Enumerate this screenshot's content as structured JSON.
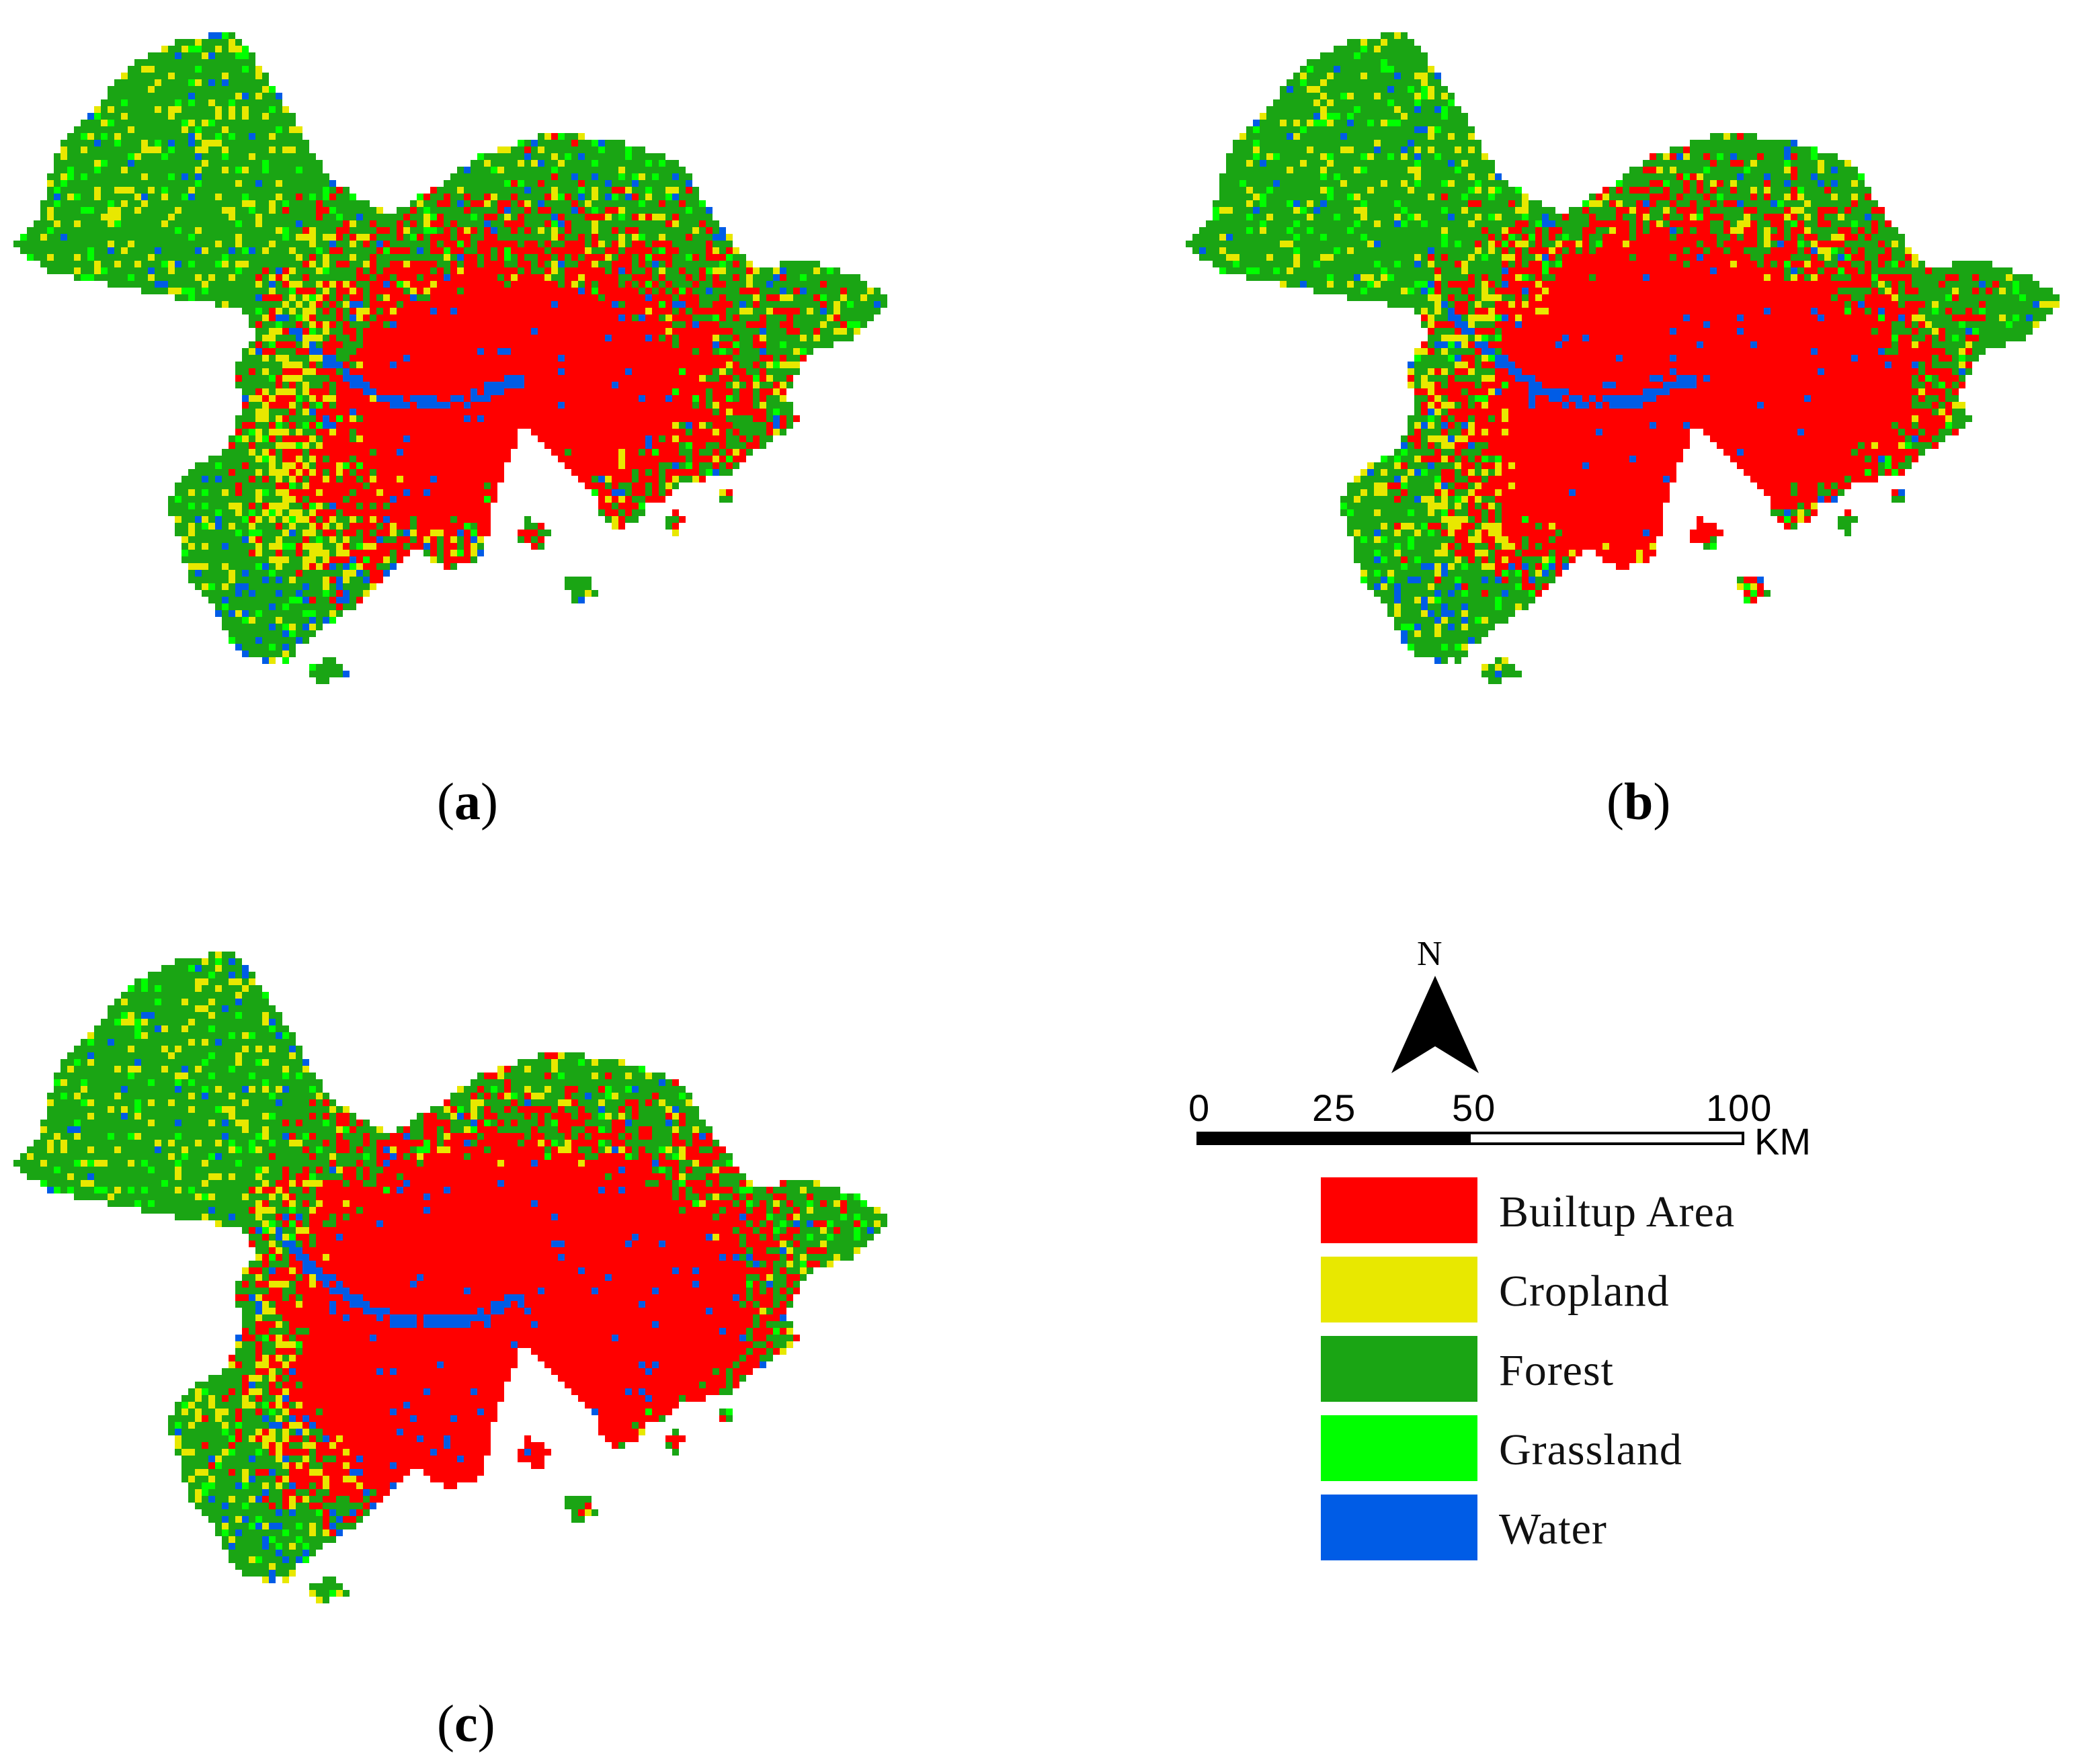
{
  "colors": {
    "builtup": "#ff0000",
    "cropland": "#e8e800",
    "forest": "#1aa514",
    "grassland": "#00ff00",
    "water": "#005ce6"
  },
  "captions": {
    "a": {
      "open": "(",
      "letter": "a",
      "close": ")"
    },
    "b": {
      "open": "(",
      "letter": "b",
      "close": ")"
    },
    "c": {
      "open": "(",
      "letter": "c",
      "close": ")"
    }
  },
  "panels": [
    {
      "id": "a",
      "builtup_extent": "moderate"
    },
    {
      "id": "b",
      "builtup_extent": "high"
    },
    {
      "id": "c",
      "builtup_extent": "very-high"
    }
  ],
  "north": {
    "label": "N"
  },
  "scale": {
    "ticks": [
      "0",
      "25",
      "50",
      "100"
    ],
    "unit": "KM",
    "segments": [
      {
        "from": 0,
        "to": 50,
        "fill": "black"
      },
      {
        "from": 50,
        "to": 100,
        "fill": "white"
      }
    ]
  },
  "legend": [
    {
      "key": "builtup",
      "label": "Builtup Area"
    },
    {
      "key": "cropland",
      "label": "Cropland"
    },
    {
      "key": "forest",
      "label": "Forest"
    },
    {
      "key": "grassland",
      "label": "Grassland"
    },
    {
      "key": "water",
      "label": "Water"
    }
  ]
}
